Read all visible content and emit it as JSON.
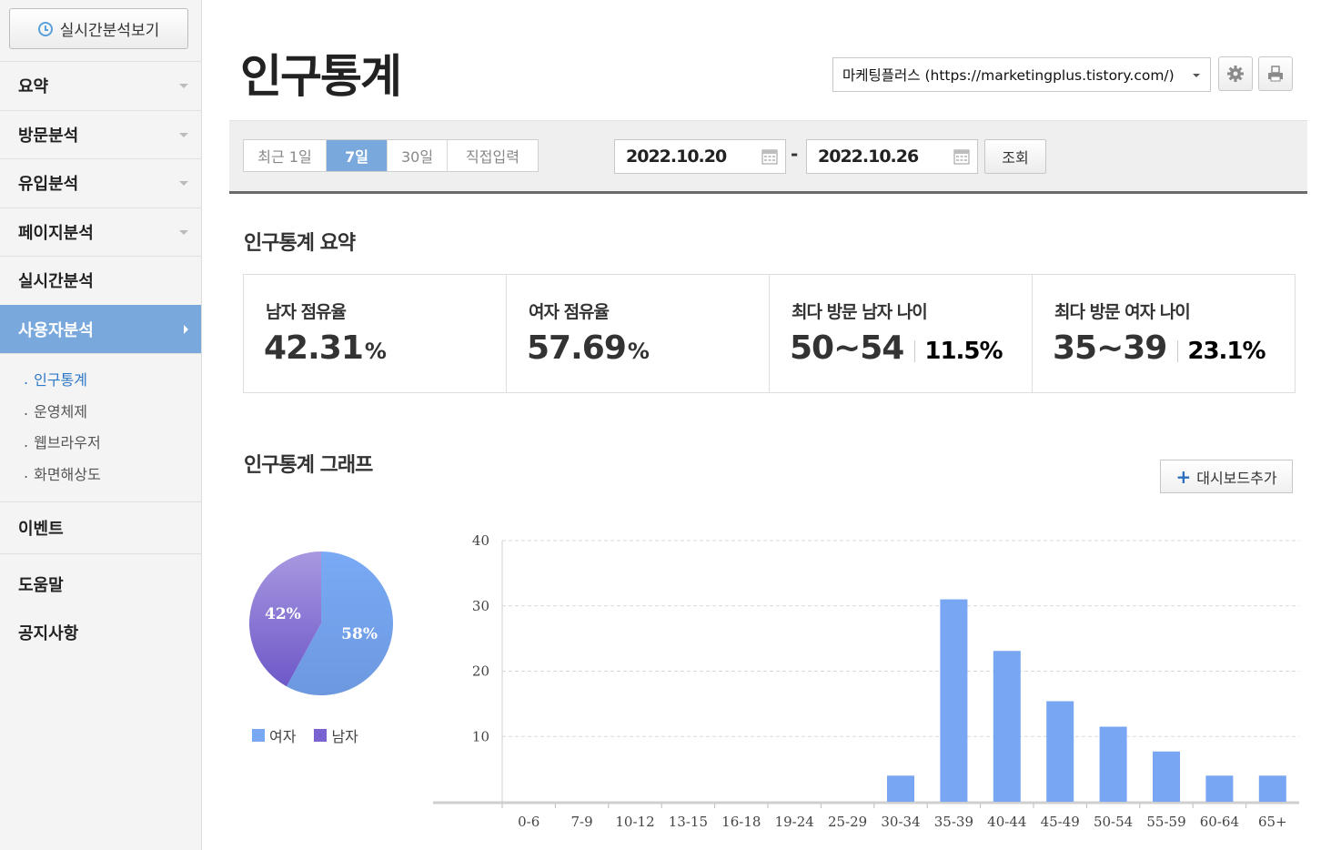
{
  "sidebar": {
    "realtime_button": "실시간분석보기",
    "menu": [
      {
        "label": "요약"
      },
      {
        "label": "방문분석"
      },
      {
        "label": "유입분석"
      },
      {
        "label": "페이지분석"
      },
      {
        "label": "실시간분석"
      },
      {
        "label": "사용자분석"
      }
    ],
    "submenu": [
      {
        "label": "인구통계"
      },
      {
        "label": "운영체제"
      },
      {
        "label": "웹브라우저"
      },
      {
        "label": "화면해상도"
      }
    ],
    "bottom": [
      {
        "label": "이벤트"
      },
      {
        "label": "도움말"
      },
      {
        "label": "공지사항"
      }
    ]
  },
  "header": {
    "title": "인구통계",
    "site_select": "마케팅플러스 (https://marketingplus.tistory.com/)",
    "settings_icon": "gear-icon",
    "print_icon": "print-icon"
  },
  "filter": {
    "periods": [
      "최근 1일",
      "7일",
      "30일",
      "직접입력"
    ],
    "selected_period": "7일",
    "start_date": "2022.10.20",
    "separator": "-",
    "end_date": "2022.10.26",
    "query_button": "조회"
  },
  "summary": {
    "title": "인구통계 요약",
    "cards": [
      {
        "label": "남자 점유율",
        "value": "42.31",
        "unit": "%"
      },
      {
        "label": "여자 점유율",
        "value": "57.69",
        "unit": "%"
      },
      {
        "label": "최다 방문 남자 나이",
        "value": "50~54",
        "percent": "11.5%"
      },
      {
        "label": "최다 방문 여자 나이",
        "value": "35~39",
        "percent": "23.1%"
      }
    ]
  },
  "graph": {
    "title": "인구통계 그래프",
    "dashboard_button": "대시보드추가",
    "legend": [
      "여자",
      "남자"
    ]
  },
  "colors": {
    "accent": "#79a9dc",
    "female": "#78a8f2",
    "male": "#7a62d0",
    "bar": "#78a6f3"
  },
  "chart_data": [
    {
      "type": "pie",
      "labels": [
        "여자",
        "남자"
      ],
      "values": [
        58,
        42
      ],
      "data_labels": [
        "58%",
        "42%"
      ]
    },
    {
      "type": "bar",
      "categories": [
        "0-6",
        "7-9",
        "10-12",
        "13-15",
        "16-18",
        "19-24",
        "25-29",
        "30-34",
        "35-39",
        "40-44",
        "45-49",
        "50-54",
        "55-59",
        "60-64",
        "65+"
      ],
      "values": [
        0,
        0,
        0,
        0,
        0,
        0,
        0,
        4,
        31,
        23.1,
        15.4,
        11.5,
        7.7,
        4,
        4
      ],
      "yticks": [
        "10",
        "20",
        "30",
        "40"
      ],
      "ylim": [
        0,
        40
      ],
      "grid": true
    }
  ]
}
